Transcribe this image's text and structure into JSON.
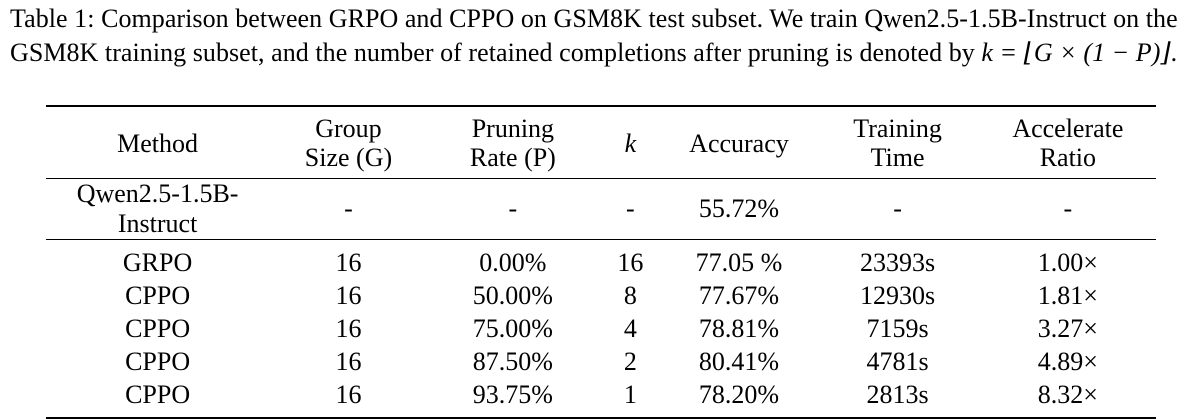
{
  "caption": {
    "label": "Table 1:",
    "text_part1": "Comparison between GRPO and CPPO on GSM8K test subset. We train Qwen2.5-1.5B-Instruct on the GSM8K training subset, and the number of retained completions after pruning is denoted by ",
    "formula": "k = ⌊G × (1 − P)⌋",
    "text_part2": "."
  },
  "table": {
    "headers": {
      "method": "Method",
      "group_size_l1": "Group",
      "group_size_l2": "Size (G)",
      "pruning_l1": "Pruning",
      "pruning_l2": "Rate (P)",
      "k": "k",
      "accuracy": "Accuracy",
      "time_l1": "Training",
      "time_l2": "Time",
      "ratio_l1": "Accelerate",
      "ratio_l2": "Ratio"
    },
    "baseline": {
      "method": "Qwen2.5-1.5B-Instruct",
      "group_size": "-",
      "pruning_rate": "-",
      "k": "-",
      "accuracy": "55.72%",
      "training_time": "-",
      "accelerate_ratio": "-"
    },
    "rows": [
      {
        "method": "GRPO",
        "group_size": "16",
        "pruning_rate": "0.00%",
        "k": "16",
        "accuracy": "77.05 %",
        "training_time": "23393s",
        "accelerate_ratio": "1.00×"
      },
      {
        "method": "CPPO",
        "group_size": "16",
        "pruning_rate": "50.00%",
        "k": "8",
        "accuracy": "77.67%",
        "training_time": "12930s",
        "accelerate_ratio": "1.81×"
      },
      {
        "method": "CPPO",
        "group_size": "16",
        "pruning_rate": "75.00%",
        "k": "4",
        "accuracy": "78.81%",
        "training_time": "7159s",
        "accelerate_ratio": "3.27×"
      },
      {
        "method": "CPPO",
        "group_size": "16",
        "pruning_rate": "87.50%",
        "k": "2",
        "accuracy": "80.41%",
        "training_time": "4781s",
        "accelerate_ratio": "4.89×"
      },
      {
        "method": "CPPO",
        "group_size": "16",
        "pruning_rate": "93.75%",
        "k": "1",
        "accuracy": "78.20%",
        "training_time": "2813s",
        "accelerate_ratio": "8.32×"
      }
    ]
  }
}
